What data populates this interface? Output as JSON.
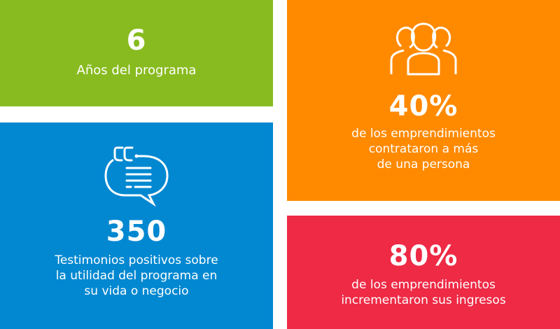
{
  "colors": {
    "green": "#88bb1f",
    "blue": "#0288d1",
    "orange": "#ff8a00",
    "red": "#ee2a45"
  },
  "stats": [
    {
      "value": "6",
      "label": [
        "Años del programa"
      ]
    },
    {
      "value": "350",
      "icon": "quote-speech-bubble-icon",
      "label": [
        "Testimonios positivos sobre",
        "la utilidad del programa en",
        "su vida o negocio"
      ]
    },
    {
      "value": "40%",
      "icon": "group-of-people-icon",
      "label": [
        "de los emprendimientos",
        "contrataron a más",
        "de una persona"
      ]
    },
    {
      "value": "80%",
      "label": [
        "de los emprendimientos",
        "incrementaron sus ingresos"
      ]
    }
  ]
}
